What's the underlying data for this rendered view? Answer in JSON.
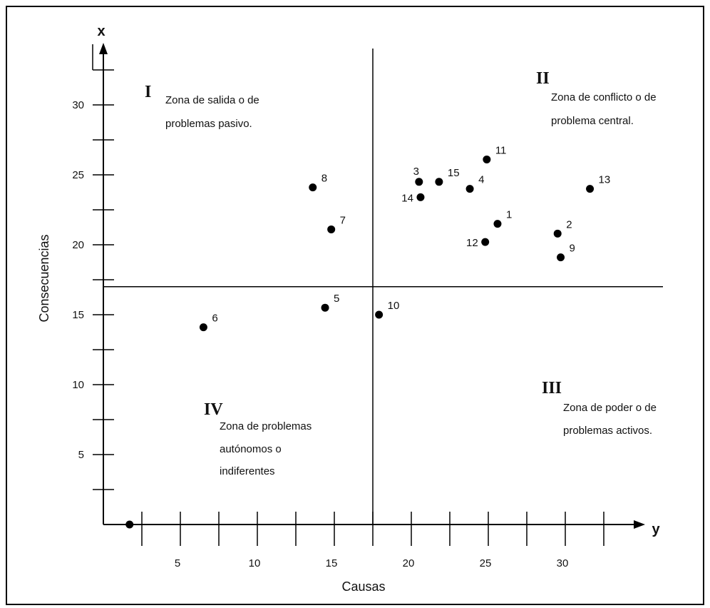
{
  "chart_data": {
    "type": "scatter",
    "xlabel": "Causas",
    "ylabel": "Consecuencias",
    "x_axis_letter": "y",
    "y_axis_letter": "x",
    "xlim": [
      0,
      35
    ],
    "ylim": [
      0,
      35
    ],
    "x_ticks": [
      5,
      10,
      15,
      20,
      25,
      30
    ],
    "y_ticks": [
      5,
      10,
      15,
      20,
      25,
      30
    ],
    "x_divider": 17.5,
    "y_divider": 17,
    "grid": false,
    "points": [
      {
        "label": "1",
        "x": 25.6,
        "y": 21.5
      },
      {
        "label": "2",
        "x": 29.5,
        "y": 20.8
      },
      {
        "label": "3",
        "x": 20.5,
        "y": 24.5
      },
      {
        "label": "4",
        "x": 23.8,
        "y": 24.0
      },
      {
        "label": "5",
        "x": 14.4,
        "y": 15.5
      },
      {
        "label": "6",
        "x": 6.5,
        "y": 14.1
      },
      {
        "label": "7",
        "x": 14.8,
        "y": 21.1
      },
      {
        "label": "8",
        "x": 13.6,
        "y": 24.1
      },
      {
        "label": "9",
        "x": 29.7,
        "y": 19.1
      },
      {
        "label": "10",
        "x": 17.9,
        "y": 15.0
      },
      {
        "label": "11",
        "x": 24.9,
        "y": 26.1
      },
      {
        "label": "12",
        "x": 24.8,
        "y": 20.2
      },
      {
        "label": "13",
        "x": 31.6,
        "y": 24.0
      },
      {
        "label": "14",
        "x": 20.6,
        "y": 23.4
      },
      {
        "label": "15",
        "x": 21.8,
        "y": 24.5
      },
      {
        "label": "",
        "x": 1.7,
        "y": 0
      }
    ]
  },
  "zones": [
    {
      "roman": "I",
      "lines": [
        "Zona de salida o de",
        "problemas pasivo."
      ]
    },
    {
      "roman": "II",
      "lines": [
        "Zona de conflicto o de",
        "problema central."
      ]
    },
    {
      "roman": "III",
      "lines": [
        "Zona de poder o de",
        "problemas activos."
      ]
    },
    {
      "roman": "IV",
      "lines": [
        "Zona de problemas",
        "autónomos o",
        "indiferentes"
      ]
    }
  ]
}
